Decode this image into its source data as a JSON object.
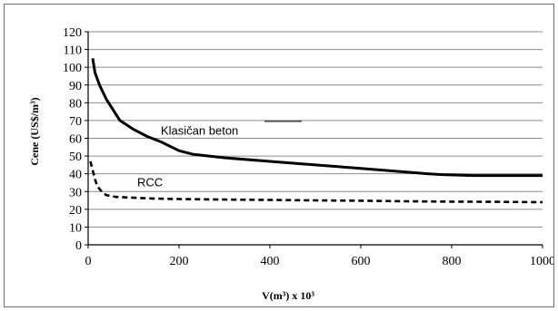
{
  "chart_data": {
    "type": "line",
    "title": "",
    "xlabel": "V(m³) x 10³",
    "ylabel": "Cene (US$/m³)",
    "xlim": [
      0,
      1000
    ],
    "ylim": [
      0,
      120
    ],
    "xticks": [
      0,
      200,
      400,
      600,
      800,
      1000
    ],
    "yticks": [
      0,
      10,
      20,
      30,
      40,
      50,
      60,
      70,
      80,
      90,
      100,
      110,
      120
    ],
    "grid": "horizontal",
    "series": [
      {
        "name": "Klasičan beton",
        "style": "solid",
        "color": "#000000",
        "x": [
          10,
          15,
          25,
          40,
          55,
          70,
          100,
          130,
          160,
          200,
          230,
          300,
          400,
          500,
          550,
          600,
          650,
          700,
          750,
          780,
          850,
          1000
        ],
        "y": [
          105,
          97,
          90,
          82,
          76,
          70,
          65,
          61,
          58,
          53,
          51,
          49,
          47,
          45,
          44,
          43,
          42,
          41,
          40,
          39.5,
          39,
          39
        ]
      },
      {
        "name": "RCC",
        "style": "dashed",
        "color": "#000000",
        "x": [
          5,
          10,
          15,
          20,
          30,
          40,
          60,
          100,
          150,
          200,
          300,
          400,
          500,
          600,
          700,
          800,
          900,
          1000
        ],
        "y": [
          47,
          42,
          37,
          33,
          30,
          28,
          27,
          26.5,
          26,
          25.8,
          25.5,
          25.3,
          25,
          24.8,
          24.5,
          24.3,
          24.2,
          24
        ]
      }
    ]
  }
}
